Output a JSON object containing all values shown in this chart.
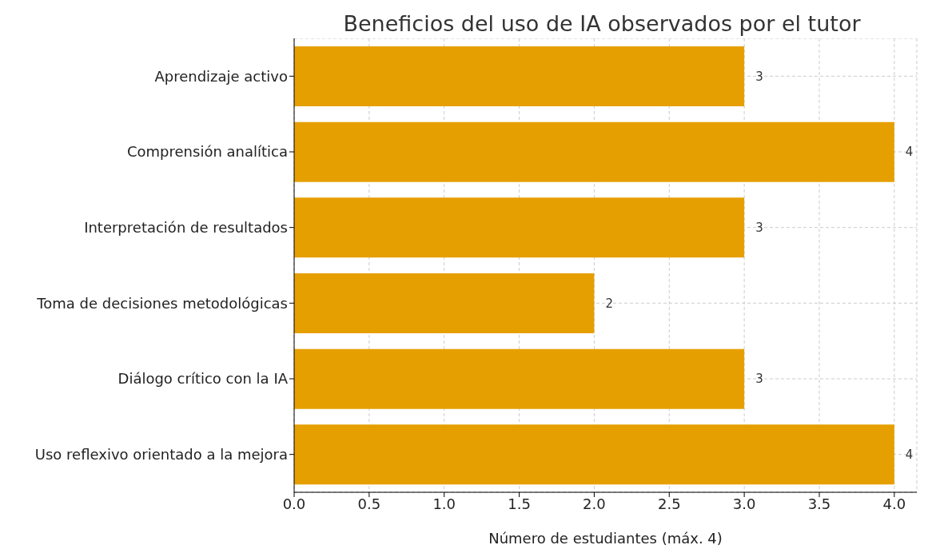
{
  "chart_data": {
    "type": "bar",
    "orientation": "horizontal",
    "title": "Beneficios del uso de IA observados por el tutor",
    "xlabel": "Número de estudiantes (máx. 4)",
    "categories": [
      "Aprendizaje activo",
      "Comprensión analítica",
      "Interpretación de resultados",
      "Toma de decisiones metodológicas",
      "Diálogo crítico con la IA",
      "Uso reflexivo orientado a la mejora"
    ],
    "values": [
      3,
      4,
      3,
      2,
      3,
      4
    ],
    "color": "#e69f00",
    "data_labels": true,
    "xlim": [
      0,
      4.15
    ],
    "xticks": [
      {
        "value": 0,
        "label": "0.0"
      },
      {
        "value": 0.5,
        "label": "0.5"
      },
      {
        "value": 1,
        "label": "1.0"
      },
      {
        "value": 1.5,
        "label": "1.5"
      },
      {
        "value": 2,
        "label": "2.0"
      },
      {
        "value": 2.5,
        "label": "2.5"
      },
      {
        "value": 3,
        "label": "3.0"
      },
      {
        "value": 3.5,
        "label": "3.5"
      },
      {
        "value": 4,
        "label": "4.0"
      }
    ],
    "grid": true
  }
}
